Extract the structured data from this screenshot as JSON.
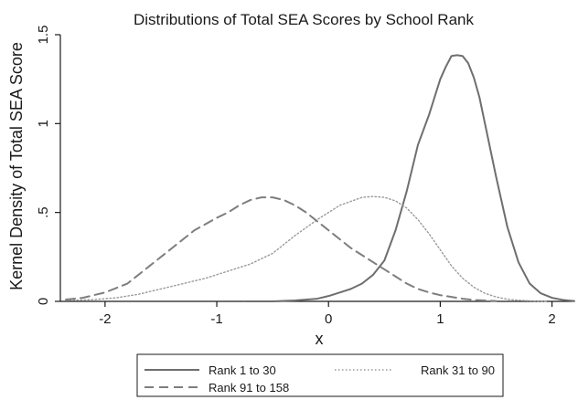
{
  "chart_data": {
    "type": "line",
    "title": "Distributions of Total SEA Scores by School Rank",
    "xlabel": "x",
    "ylabel": "Kernel Density of Total SEA Score",
    "xlim": [
      -2.4,
      2.2
    ],
    "ylim": [
      0,
      1.5
    ],
    "x_ticks": [
      -2,
      -1,
      0,
      1,
      2
    ],
    "x_tick_labels": [
      "-2",
      "-1",
      "0",
      "1",
      "2"
    ],
    "y_ticks": [
      0,
      0.5,
      1,
      1.5
    ],
    "y_tick_labels": [
      "0",
      ".5",
      "1",
      "1.5"
    ],
    "grid": false,
    "legend_position": "bottom",
    "series": [
      {
        "name": "Rank 1 to 30",
        "style": "solid",
        "color": "#6e6e6e",
        "x": [
          -0.75,
          -0.5,
          -0.3,
          -0.1,
          0.0,
          0.1,
          0.2,
          0.3,
          0.4,
          0.5,
          0.6,
          0.7,
          0.8,
          0.9,
          0.95,
          1.0,
          1.05,
          1.1,
          1.15,
          1.2,
          1.25,
          1.3,
          1.35,
          1.4,
          1.5,
          1.6,
          1.7,
          1.8,
          1.9,
          2.0,
          2.1,
          2.2
        ],
        "y": [
          0.0,
          0.0,
          0.005,
          0.015,
          0.03,
          0.05,
          0.07,
          0.1,
          0.15,
          0.23,
          0.4,
          0.62,
          0.88,
          1.05,
          1.15,
          1.25,
          1.32,
          1.38,
          1.385,
          1.38,
          1.34,
          1.26,
          1.15,
          1.0,
          0.7,
          0.42,
          0.22,
          0.1,
          0.045,
          0.02,
          0.008,
          0.002
        ]
      },
      {
        "name": "Rank 31 to 90",
        "style": "dotted",
        "color": "#9a9a9a",
        "x": [
          -2.35,
          -2.1,
          -1.9,
          -1.7,
          -1.5,
          -1.3,
          -1.1,
          -0.9,
          -0.7,
          -0.5,
          -0.3,
          -0.1,
          0.1,
          0.3,
          0.4,
          0.5,
          0.6,
          0.7,
          0.8,
          0.9,
          1.0,
          1.1,
          1.2,
          1.3,
          1.4,
          1.5,
          1.6,
          1.7,
          1.8,
          1.95
        ],
        "y": [
          0.005,
          0.01,
          0.02,
          0.04,
          0.07,
          0.1,
          0.13,
          0.17,
          0.21,
          0.27,
          0.37,
          0.46,
          0.54,
          0.585,
          0.59,
          0.585,
          0.565,
          0.525,
          0.46,
          0.38,
          0.29,
          0.2,
          0.13,
          0.08,
          0.045,
          0.025,
          0.012,
          0.006,
          0.003,
          0.001
        ]
      },
      {
        "name": "Rank 91 to 158",
        "style": "dashed",
        "color": "#7e7e7e",
        "x": [
          -2.35,
          -2.2,
          -2.0,
          -1.8,
          -1.6,
          -1.4,
          -1.2,
          -1.0,
          -0.9,
          -0.8,
          -0.7,
          -0.6,
          -0.5,
          -0.4,
          -0.3,
          -0.2,
          -0.1,
          0.0,
          0.1,
          0.2,
          0.3,
          0.4,
          0.5,
          0.6,
          0.7,
          0.8,
          0.9,
          1.0,
          1.1,
          1.2,
          1.3,
          1.5
        ],
        "y": [
          0.01,
          0.02,
          0.05,
          0.1,
          0.2,
          0.3,
          0.4,
          0.47,
          0.5,
          0.54,
          0.57,
          0.585,
          0.585,
          0.57,
          0.54,
          0.5,
          0.45,
          0.4,
          0.35,
          0.3,
          0.26,
          0.22,
          0.18,
          0.14,
          0.1,
          0.07,
          0.05,
          0.035,
          0.025,
          0.015,
          0.008,
          0.002
        ]
      }
    ],
    "legend": [
      {
        "label": "Rank 1 to 30",
        "style": "solid"
      },
      {
        "label": "Rank 31 to 90",
        "style": "dotted"
      },
      {
        "label": "Rank 91 to 158",
        "style": "dashed"
      }
    ]
  }
}
